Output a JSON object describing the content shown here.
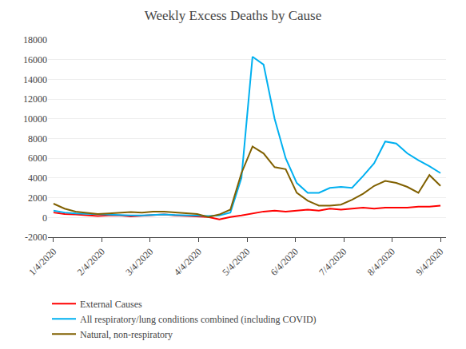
{
  "chart_data": {
    "type": "line",
    "title": "Weekly Excess Deaths by Cause",
    "x": [
      0,
      1,
      2,
      3,
      4,
      5,
      6,
      7,
      8,
      9,
      10,
      11,
      12,
      13,
      14,
      15,
      16,
      17,
      18,
      19,
      20,
      21,
      22,
      23,
      24,
      25,
      26,
      27,
      28,
      29,
      30,
      31,
      32,
      33,
      34,
      35
    ],
    "xlim": [
      -0.5,
      35.5
    ],
    "xticks": [
      {
        "value": 0,
        "label": "1/4/2020"
      },
      {
        "value": 4.375,
        "label": "2/4/2020"
      },
      {
        "value": 8.75,
        "label": "3/4/2020"
      },
      {
        "value": 13.125,
        "label": "4/4/2020"
      },
      {
        "value": 17.5,
        "label": "5/4/2020"
      },
      {
        "value": 21.875,
        "label": "6/4/2020"
      },
      {
        "value": 26.25,
        "label": "7/4/2020"
      },
      {
        "value": 30.625,
        "label": "8/4/2020"
      },
      {
        "value": 35,
        "label": "9/4/2020"
      }
    ],
    "series": [
      {
        "name": "External Causes",
        "color": "#FF0000",
        "values": [
          500,
          350,
          300,
          250,
          150,
          200,
          200,
          100,
          150,
          200,
          300,
          200,
          150,
          100,
          50,
          -200,
          50,
          200,
          400,
          600,
          700,
          600,
          700,
          800,
          700,
          900,
          800,
          900,
          1000,
          900,
          1000,
          1000,
          1000,
          1100,
          1100,
          1200
        ]
      },
      {
        "name": "All respiratory/lung conditions combined (including COVID)",
        "color": "#00B0F0",
        "values": [
          700,
          500,
          400,
          350,
          300,
          250,
          200,
          200,
          200,
          250,
          300,
          250,
          200,
          200,
          150,
          200,
          500,
          4000,
          16300,
          15500,
          10000,
          6000,
          3500,
          2500,
          2500,
          3000,
          3100,
          3000,
          4200,
          5500,
          7700,
          7500,
          6500,
          5800,
          5200,
          4500
        ]
      },
      {
        "name": "Natural, non-respiratory",
        "color": "#806000",
        "values": [
          1400,
          900,
          600,
          450,
          350,
          400,
          500,
          550,
          500,
          600,
          600,
          500,
          400,
          350,
          50,
          300,
          800,
          4500,
          7200,
          6500,
          5100,
          4900,
          2500,
          1700,
          1200,
          1200,
          1300,
          1800,
          2400,
          3200,
          3700,
          3500,
          3100,
          2500,
          4300,
          3200
        ]
      }
    ],
    "ylim": [
      -2000,
      18000
    ],
    "yticks": [
      -2000,
      0,
      2000,
      4000,
      6000,
      8000,
      10000,
      12000,
      14000,
      16000,
      18000
    ],
    "grid": "y",
    "legend": "below"
  }
}
